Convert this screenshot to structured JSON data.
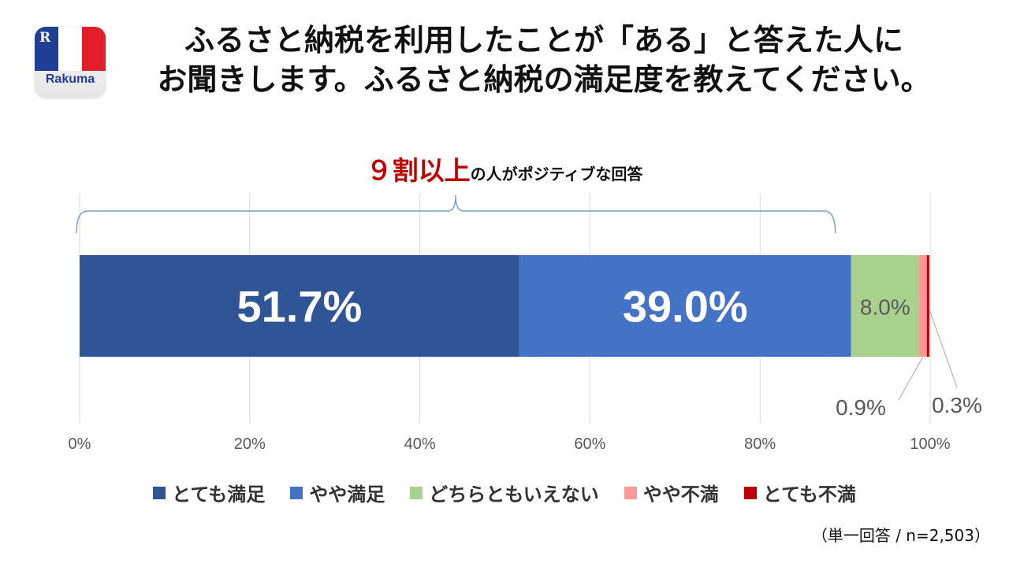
{
  "logo": {
    "brand": "Rakuma",
    "mark": "R"
  },
  "title": {
    "line1": "ふるさと納税を利用したことが「ある」と答えた人に",
    "line2": "お聞きします。ふるさと納税の満足度を教えてください。"
  },
  "callout": {
    "highlight": "９割以上",
    "rest": "の人がポジティブな回答"
  },
  "note": "（単一回答 / n=2,503）",
  "colors": [
    "#2f5597",
    "#4472c4",
    "#a9d18e",
    "#ff9999",
    "#c00000"
  ],
  "chart_data": {
    "type": "bar",
    "orientation": "horizontal",
    "stacked": true,
    "x_ticks": [
      "0%",
      "20%",
      "40%",
      "60%",
      "80%",
      "100%"
    ],
    "xlim": [
      0,
      100
    ],
    "grid": true,
    "legend_position": "bottom",
    "series": [
      {
        "name": "とても満足",
        "value": 51.7,
        "label": "51.7%"
      },
      {
        "name": "やや満足",
        "value": 39.0,
        "label": "39.0%"
      },
      {
        "name": "どちらともいえない",
        "value": 8.0,
        "label": "8.0%"
      },
      {
        "name": "やや不満",
        "value": 0.9,
        "label": "0.9%"
      },
      {
        "name": "とても不満",
        "value": 0.3,
        "label": "0.3%"
      }
    ]
  }
}
